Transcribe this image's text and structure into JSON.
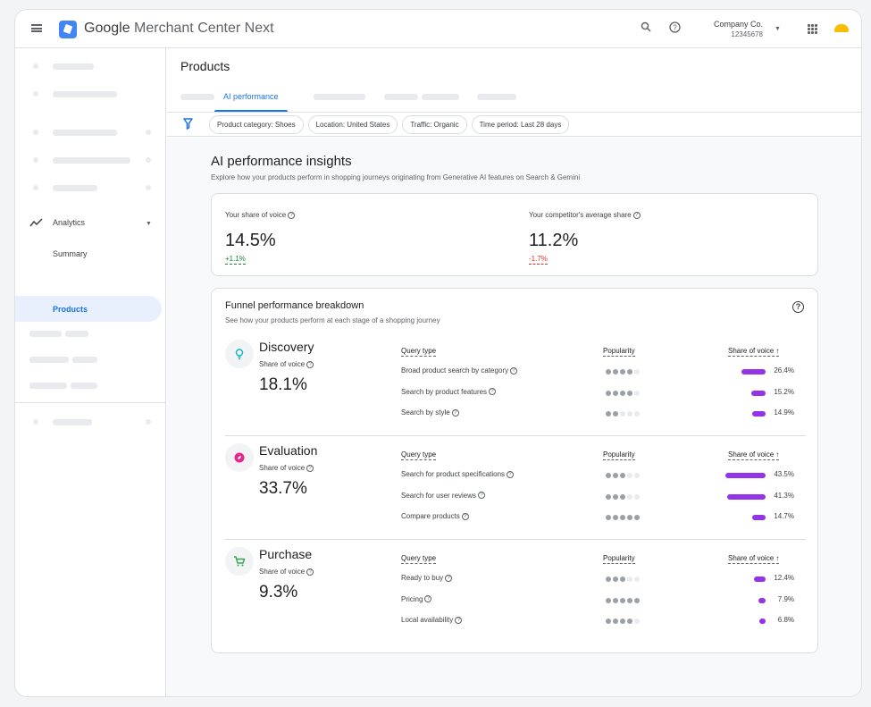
{
  "app": {
    "title_google": "Google",
    "title_rest": "Merchant Center Next"
  },
  "account": {
    "name": "Company Co.",
    "id": "12345678"
  },
  "sidebar": {
    "analytics": "Analytics",
    "summary": "Summary",
    "products": "Products"
  },
  "page": {
    "title": "Products",
    "active_tab": "AI performance"
  },
  "filters": [
    "Product category: Shoes",
    "Location: United States",
    "Traffic: Organic",
    "Time period: Last 28 days"
  ],
  "insights": {
    "title": "AI performance insights",
    "subtitle": "Explore how your products perform in shopping journeys originating from Generative AI features on Search & Gemini"
  },
  "summary": {
    "yours": {
      "label": "Your share of voice",
      "value": "14.5%",
      "delta": "+1.1%",
      "color": "#188038"
    },
    "competitor": {
      "label": "Your competitor's average share",
      "value": "11.2%",
      "delta": "-1.7%",
      "color": "#d93025"
    }
  },
  "funnel": {
    "title": "Funnel performance breakdown",
    "subtitle": "See how your products perform at each stage of a shopping journey",
    "headers": {
      "query": "Query type",
      "popularity": "Popularity",
      "sov": "Share of voice ↑"
    },
    "sov_label": "Share of voice",
    "bar_color": "#9334e6",
    "stages": [
      {
        "name": "Discovery",
        "icon": "lightbulb-icon",
        "icon_color": "#12b5cb",
        "sov": "18.1%",
        "rows": [
          {
            "query": "Broad product search by category",
            "popularity": 4,
            "share": 26.4,
            "pct": "26.4%"
          },
          {
            "query": "Search by product features",
            "popularity": 4,
            "share": 15.2,
            "pct": "15.2%"
          },
          {
            "query": "Search by style",
            "popularity": 2,
            "share": 14.9,
            "pct": "14.9%"
          }
        ]
      },
      {
        "name": "Evaluation",
        "icon": "compass-icon",
        "icon_color": "#e52592",
        "sov": "33.7%",
        "rows": [
          {
            "query": "Search for product specifications",
            "popularity": 3,
            "share": 43.5,
            "pct": "43.5%"
          },
          {
            "query": "Search for user reviews",
            "popularity": 3,
            "share": 41.3,
            "pct": "41.3%"
          },
          {
            "query": "Compare products",
            "popularity": 5,
            "share": 14.7,
            "pct": "14.7%"
          }
        ]
      },
      {
        "name": "Purchase",
        "icon": "cart-icon",
        "icon_color": "#34a853",
        "sov": "9.3%",
        "rows": [
          {
            "query": "Ready to buy",
            "popularity": 3,
            "share": 12.4,
            "pct": "12.4%"
          },
          {
            "query": "Pricing",
            "popularity": 5,
            "share": 7.9,
            "pct": "7.9%"
          },
          {
            "query": "Local availability",
            "popularity": 4,
            "share": 6.8,
            "pct": "6.8%"
          }
        ]
      }
    ]
  }
}
